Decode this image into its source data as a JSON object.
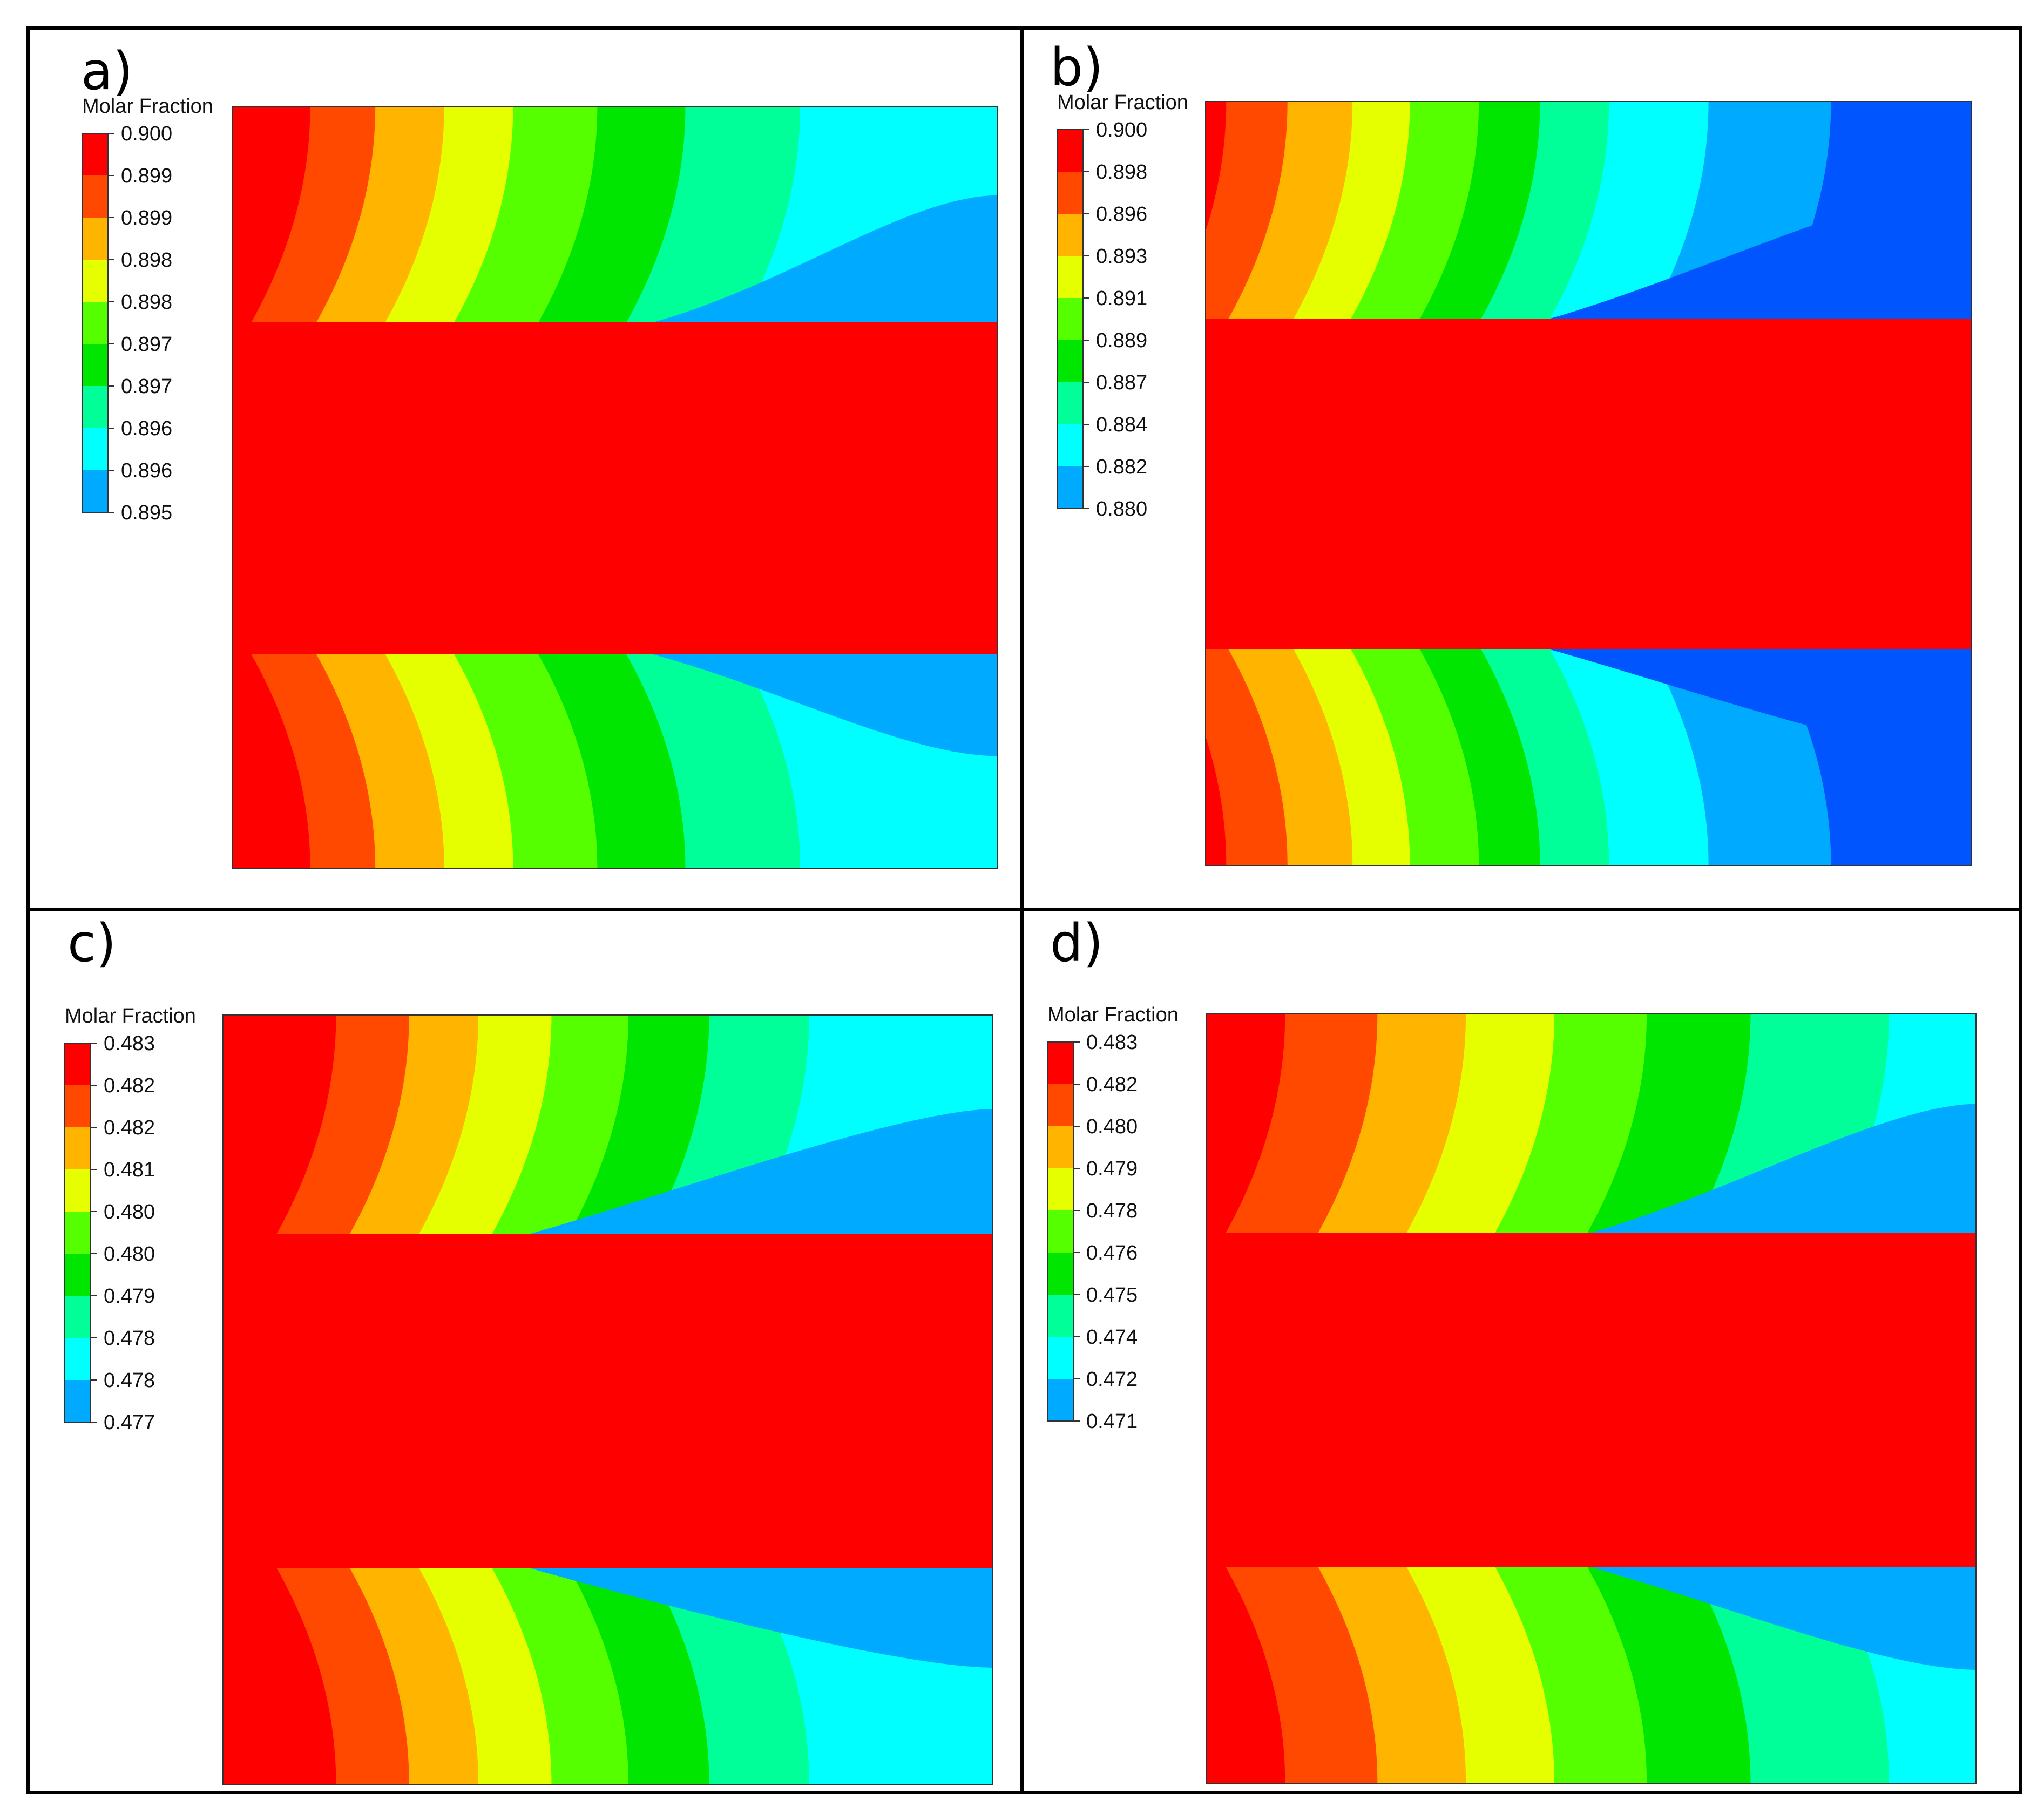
{
  "figure": {
    "colormap": [
      "#0000ff",
      "#0055ff",
      "#00aaff",
      "#00ffff",
      "#00ff99",
      "#00e600",
      "#55ff00",
      "#e6ff00",
      "#ffb400",
      "#ff4800",
      "#ff0000"
    ],
    "band_colors": [
      "#ff0000",
      "#ff4800",
      "#ffb400",
      "#e6ff00",
      "#55ff00",
      "#00e600",
      "#00ff99",
      "#00ffff",
      "#00aaff",
      "#0055ff"
    ],
    "core_color": "#ff0000"
  },
  "panels": [
    {
      "label": "a)",
      "legend_title": "Molar Fraction",
      "legend_ticks": [
        "0.900",
        "0.899",
        "0.899",
        "0.898",
        "0.898",
        "0.897",
        "0.897",
        "0.896",
        "0.896",
        "0.895"
      ],
      "bands_top": [
        0.0,
        0.095,
        0.18,
        0.27,
        0.36,
        0.47,
        0.585,
        0.735,
        1.01,
        1.01
      ],
      "bands_bottom": [
        0.0,
        0.095,
        0.18,
        0.27,
        0.36,
        0.47,
        0.585,
        0.735,
        1.01,
        1.01
      ],
      "far_right_top": [
        0.55,
        0.95
      ],
      "far_right_bottom": [
        0.55,
        0.95
      ]
    },
    {
      "label": "b)",
      "legend_title": "Molar Fraction",
      "legend_ticks": [
        "0.900",
        "0.898",
        "0.896",
        "0.893",
        "0.891",
        "0.889",
        "0.887",
        "0.884",
        "0.882",
        "0.880"
      ],
      "bands_top": [
        0.0,
        0.02,
        0.1,
        0.185,
        0.26,
        0.35,
        0.43,
        0.52,
        0.65,
        0.81
      ],
      "bands_bottom": [
        0.0,
        0.02,
        0.1,
        0.185,
        0.26,
        0.35,
        0.43,
        0.52,
        0.65,
        0.81
      ],
      "far_right_top": [
        0.45,
        0.99
      ],
      "far_right_bottom": [
        0.45,
        0.99
      ]
    },
    {
      "label": "c)",
      "legend_title": "Molar Fraction",
      "legend_ticks": [
        "0.483",
        "0.482",
        "0.482",
        "0.481",
        "0.480",
        "0.480",
        "0.479",
        "0.478",
        "0.478",
        "0.477"
      ],
      "bands_top": [
        0.0,
        0.14,
        0.235,
        0.325,
        0.42,
        0.52,
        0.625,
        0.755,
        1.01,
        1.01
      ],
      "bands_bottom": [
        0.0,
        0.14,
        0.235,
        0.325,
        0.42,
        0.52,
        0.625,
        0.755,
        1.01,
        1.01
      ],
      "far_right_top": [
        0.4,
        0.92
      ],
      "far_right_bottom": [
        0.4,
        0.92
      ]
    },
    {
      "label": "d)",
      "legend_title": "Molar Fraction",
      "legend_ticks": [
        "0.483",
        "0.482",
        "0.480",
        "0.479",
        "0.478",
        "0.476",
        "0.475",
        "0.474",
        "0.472",
        "0.471"
      ],
      "bands_top": [
        0.0,
        0.095,
        0.215,
        0.33,
        0.445,
        0.565,
        0.7,
        0.88,
        1.01,
        1.01
      ],
      "bands_bottom": [
        0.0,
        0.095,
        0.215,
        0.33,
        0.445,
        0.565,
        0.7,
        0.88,
        1.01,
        1.01
      ],
      "far_right_top": [
        0.5,
        0.95
      ],
      "far_right_bottom": [
        0.5,
        0.95
      ]
    }
  ]
}
